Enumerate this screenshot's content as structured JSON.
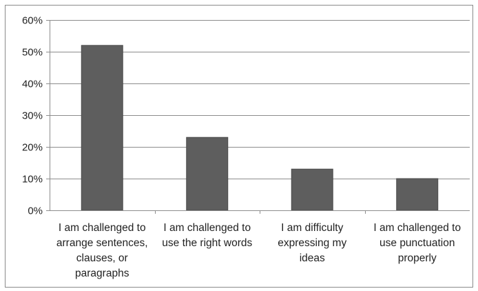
{
  "chart_data": {
    "type": "bar",
    "title": "",
    "xlabel": "",
    "ylabel": "",
    "categories": [
      [
        "I am challenged to",
        "arrange sentences,",
        "clauses, or",
        "paragraphs"
      ],
      [
        "I am challenged to",
        "use the right words"
      ],
      [
        "I am difficulty",
        "expressing my",
        "ideas"
      ],
      [
        "I am challenged to",
        "use punctuation",
        "properly"
      ]
    ],
    "values": [
      0.52,
      0.23,
      0.13,
      0.1
    ],
    "ylim": [
      0,
      0.6
    ],
    "y_ticks": [
      {
        "value": 0.0,
        "label": "0%"
      },
      {
        "value": 0.1,
        "label": "10%"
      },
      {
        "value": 0.2,
        "label": "20%"
      },
      {
        "value": 0.3,
        "label": "30%"
      },
      {
        "value": 0.4,
        "label": "40%"
      },
      {
        "value": 0.5,
        "label": "50%"
      },
      {
        "value": 0.6,
        "label": "60%"
      }
    ],
    "grid": true,
    "legend": "none",
    "colors": {
      "bar": "#5e5e5e",
      "bar_edge": "#4a4a4a",
      "grid": "#8c8c8c",
      "axis": "#8c8c8c",
      "frame": "#8a8a8a"
    }
  }
}
